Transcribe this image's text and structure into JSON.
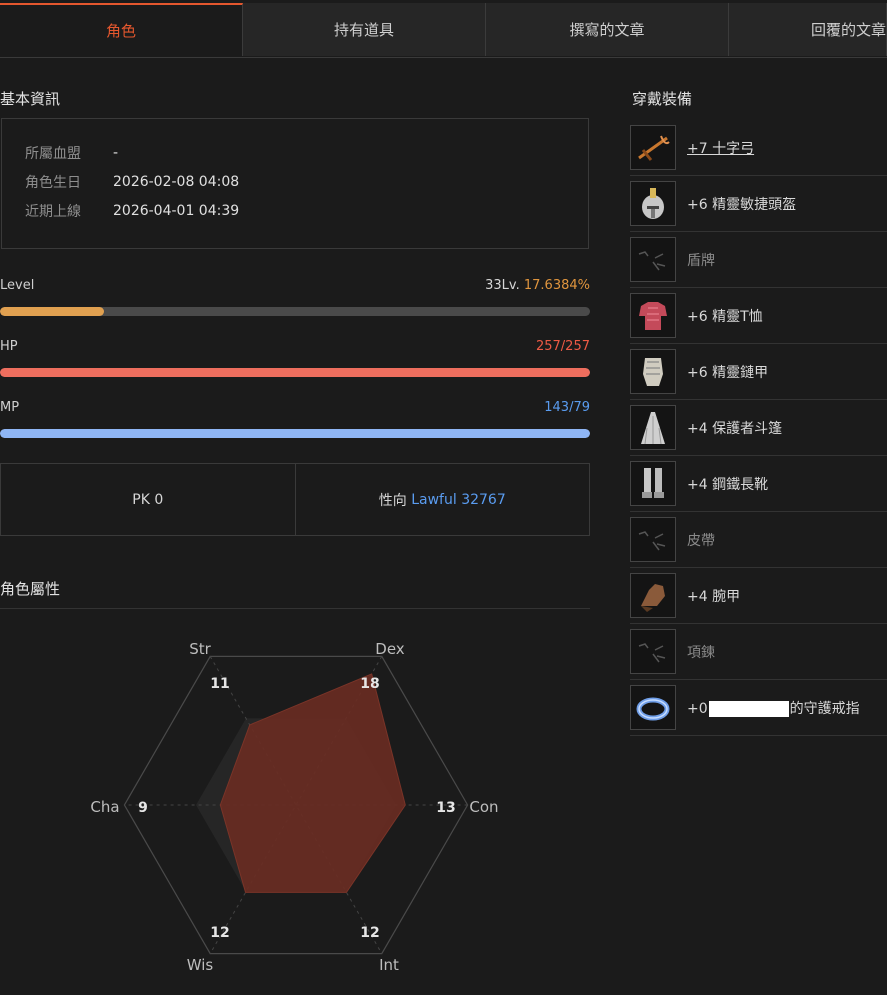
{
  "tabs": [
    {
      "label": "角色",
      "active": true
    },
    {
      "label": "持有道具",
      "active": false
    },
    {
      "label": "撰寫的文章",
      "active": false
    },
    {
      "label": "回覆的文章",
      "active": false
    }
  ],
  "basic_info": {
    "title": "基本資訊",
    "rows": [
      {
        "label": "所屬血盟",
        "value": "-"
      },
      {
        "label": "角色生日",
        "value": "2026-02-08 04:08"
      },
      {
        "label": "近期上線",
        "value": "2026-04-01 04:39"
      }
    ]
  },
  "stats": {
    "level": {
      "label": "Level",
      "level_text": "33Lv.",
      "percent_text": "17.6384%",
      "fill_fraction": 0.176
    },
    "hp": {
      "label": "HP",
      "value_text": "257/257",
      "fill_fraction": 1.0
    },
    "mp": {
      "label": "MP",
      "value_text": "143/79",
      "fill_fraction": 1.0
    }
  },
  "pk": {
    "pk_text": "PK 0",
    "alignment_label": "性向",
    "alignment_value": "Lawful 32767"
  },
  "attributes": {
    "title": "角色屬性",
    "items": [
      {
        "name": "Str",
        "value": "11"
      },
      {
        "name": "Dex",
        "value": "18"
      },
      {
        "name": "Con",
        "value": "13"
      },
      {
        "name": "Int",
        "value": "12"
      },
      {
        "name": "Wis",
        "value": "12"
      },
      {
        "name": "Cha",
        "value": "9"
      }
    ],
    "max": 20
  },
  "equipment": {
    "title": "穿戴裝備",
    "items": [
      {
        "name": "+7 十字弓",
        "icon": "crossbow-icon",
        "state": "link"
      },
      {
        "name": "+6 精靈敏捷頭盔",
        "icon": "helmet-icon",
        "state": "equipped"
      },
      {
        "name": "盾牌",
        "icon": "empty-slot-icon",
        "state": "empty"
      },
      {
        "name": "+6 精靈T恤",
        "icon": "tshirt-icon",
        "state": "equipped"
      },
      {
        "name": "+6 精靈鏈甲",
        "icon": "chainmail-icon",
        "state": "equipped"
      },
      {
        "name": "+4 保護者斗篷",
        "icon": "cloak-icon",
        "state": "equipped"
      },
      {
        "name": "+4 鋼鐵長靴",
        "icon": "boots-icon",
        "state": "equipped"
      },
      {
        "name": "皮帶",
        "icon": "empty-slot-icon",
        "state": "empty"
      },
      {
        "name": "+4 腕甲",
        "icon": "gauntlet-icon",
        "state": "equipped"
      },
      {
        "name": "項鍊",
        "icon": "empty-slot-icon",
        "state": "empty"
      },
      {
        "name_prefix": "+0",
        "name_suffix": "的守護戒指",
        "icon": "ring-icon",
        "state": "redacted"
      }
    ]
  },
  "colors": {
    "accent": "#e4572e",
    "level_bar": "#e0a050",
    "hp_bar": "#ee6e5e",
    "mp_bar": "#8fb6f5",
    "level_percent": "#e0953e",
    "hp_text": "#ee5a45",
    "mp_text": "#5a9cf0",
    "lawful": "#5a9cf0"
  }
}
